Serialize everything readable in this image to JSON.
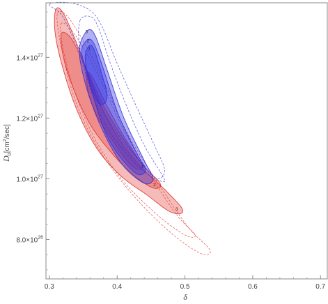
{
  "chart_data": {
    "type": "contour",
    "title": "",
    "xlabel": "δ",
    "ylabel_main": "D",
    "ylabel_sub": "0",
    "ylabel_unit_open": "[cm",
    "ylabel_unit_sup": "2",
    "ylabel_unit_close": "/sec]",
    "xlim": [
      0.295,
      0.71
    ],
    "ylim": [
      6.7e+26,
      1.58e+27
    ],
    "x_ticks": [
      {
        "value": 0.3,
        "label": "0.3"
      },
      {
        "value": 0.4,
        "label": "0.4"
      },
      {
        "value": 0.5,
        "label": "0.5"
      },
      {
        "value": 0.6,
        "label": "0.6"
      },
      {
        "value": 0.7,
        "label": "0.7"
      }
    ],
    "y_ticks": [
      {
        "value": 8e+26,
        "mantissa": "8.0",
        "exp": "26"
      },
      {
        "value": 1e+27,
        "mantissa": "1.0",
        "exp": "27"
      },
      {
        "value": 1.2e+27,
        "mantissa": "1.2",
        "exp": "27"
      },
      {
        "value": 1.4e+27,
        "mantissa": "1.4",
        "exp": "27"
      }
    ],
    "grid": false,
    "series": [
      {
        "color": "#e0302a",
        "contours": [
          {
            "level": "3",
            "style": "filled",
            "opacity": 0.33,
            "points": [
              [
                0.31,
                1.56e+27
              ],
              [
                0.322,
                1.54e+27
              ],
              [
                0.345,
                1.42e+27
              ],
              [
                0.37,
                1.27e+27
              ],
              [
                0.4,
                1.14e+27
              ],
              [
                0.435,
                1.04e+27
              ],
              [
                0.47,
                9.65e+26
              ],
              [
                0.495,
                9.05e+26
              ],
              [
                0.493,
                8.85e+26
              ],
              [
                0.475,
                8.95e+26
              ],
              [
                0.445,
                9.45e+26
              ],
              [
                0.405,
                1.01e+27
              ],
              [
                0.37,
                1.1e+27
              ],
              [
                0.34,
                1.23e+27
              ],
              [
                0.318,
                1.38e+27
              ],
              [
                0.308,
                1.49e+27
              ]
            ],
            "label_at": [
              0.488,
              9e+26
            ]
          },
          {
            "level": "2",
            "style": "filled",
            "opacity": 0.33,
            "points": [
              [
                0.318,
                1.48e+27
              ],
              [
                0.333,
                1.46e+27
              ],
              [
                0.355,
                1.36e+27
              ],
              [
                0.38,
                1.24e+27
              ],
              [
                0.41,
                1.13e+27
              ],
              [
                0.44,
                1.04e+27
              ],
              [
                0.462,
                9.9e+26
              ],
              [
                0.462,
                9.7e+26
              ],
              [
                0.448,
                9.75e+26
              ],
              [
                0.42,
                1.02e+27
              ],
              [
                0.39,
                1.09e+27
              ],
              [
                0.36,
                1.18e+27
              ],
              [
                0.335,
                1.3e+27
              ],
              [
                0.32,
                1.41e+27
              ]
            ],
            "label_at": [
              0.455,
              9.8e+26
            ]
          },
          {
            "level": "1",
            "style": "filled",
            "opacity": 0.33,
            "points": [
              [
                0.355,
                1.35e+27
              ],
              [
                0.365,
                1.33e+27
              ],
              [
                0.385,
                1.24e+27
              ],
              [
                0.41,
                1.14e+27
              ],
              [
                0.43,
                1.07e+27
              ],
              [
                0.438,
                1.04e+27
              ],
              [
                0.432,
                1.03e+27
              ],
              [
                0.418,
                1.05e+27
              ],
              [
                0.395,
                1.12e+27
              ],
              [
                0.372,
                1.2e+27
              ],
              [
                0.358,
                1.28e+27
              ]
            ],
            "label_at": [
              0.437,
              1.04e+27
            ]
          },
          {
            "level": "",
            "style": "dashed",
            "points": [
              [
                0.317,
                1.51e+27
              ],
              [
                0.336,
                1.48e+27
              ],
              [
                0.37,
                1.35e+27
              ],
              [
                0.41,
                1.16e+27
              ],
              [
                0.455,
                9.9e+26
              ],
              [
                0.49,
                8.75e+26
              ],
              [
                0.515,
                8.15e+26
              ],
              [
                0.5,
                8.15e+26
              ],
              [
                0.46,
                8.8e+26
              ],
              [
                0.41,
                9.9e+26
              ],
              [
                0.37,
                1.12e+27
              ],
              [
                0.34,
                1.27e+27
              ],
              [
                0.322,
                1.41e+27
              ]
            ]
          },
          {
            "level": "",
            "style": "dashed",
            "points": [
              [
                0.312,
                1.545e+27
              ],
              [
                0.332,
                1.52e+27
              ],
              [
                0.372,
                1.36e+27
              ],
              [
                0.415,
                1.15e+27
              ],
              [
                0.465,
                9.7e+26
              ],
              [
                0.505,
                8.4e+26
              ],
              [
                0.537,
                7.65e+26
              ],
              [
                0.522,
                7.55e+26
              ],
              [
                0.475,
                8.3e+26
              ],
              [
                0.42,
                9.55e+26
              ],
              [
                0.372,
                1.1e+27
              ],
              [
                0.338,
                1.26e+27
              ],
              [
                0.318,
                1.43e+27
              ]
            ]
          }
        ]
      },
      {
        "color": "#2f2fe0",
        "contours": [
          {
            "level": "3",
            "style": "filled",
            "opacity": 0.38,
            "points": [
              [
                0.345,
                1.44e+27
              ],
              [
                0.357,
                1.49e+27
              ],
              [
                0.368,
                1.47e+27
              ],
              [
                0.385,
                1.36e+27
              ],
              [
                0.41,
                1.2e+27
              ],
              [
                0.44,
                1.06e+27
              ],
              [
                0.453,
                1e+27
              ],
              [
                0.44,
                9.85e+26
              ],
              [
                0.41,
                1.04e+27
              ],
              [
                0.385,
                1.13e+27
              ],
              [
                0.362,
                1.25e+27
              ],
              [
                0.347,
                1.37e+27
              ]
            ],
            "label_at": [
              0.355,
              1.485e+27
            ]
          },
          {
            "level": "2",
            "style": "filled",
            "opacity": 0.38,
            "points": [
              [
                0.348,
                1.43e+27
              ],
              [
                0.358,
                1.46e+27
              ],
              [
                0.367,
                1.44e+27
              ],
              [
                0.38,
                1.36e+27
              ],
              [
                0.402,
                1.21e+27
              ],
              [
                0.43,
                1.08e+27
              ],
              [
                0.442,
                1.03e+27
              ],
              [
                0.43,
                1.015e+27
              ],
              [
                0.405,
                1.07e+27
              ],
              [
                0.383,
                1.15e+27
              ],
              [
                0.365,
                1.27e+27
              ],
              [
                0.351,
                1.38e+27
              ]
            ],
            "label_at": [
              0.357,
              1.455e+27
            ]
          },
          {
            "level": "1",
            "style": "filled",
            "opacity": 0.38,
            "points": [
              [
                0.353,
                1.41e+27
              ],
              [
                0.36,
                1.44e+27
              ],
              [
                0.367,
                1.42e+27
              ],
              [
                0.378,
                1.34e+27
              ],
              [
                0.385,
                1.28e+27
              ],
              [
                0.382,
                1.25e+27
              ],
              [
                0.372,
                1.25e+27
              ],
              [
                0.362,
                1.3e+27
              ],
              [
                0.355,
                1.36e+27
              ]
            ],
            "label_at": [
              0.359,
              1.43e+27
            ]
          },
          {
            "level": "",
            "style": "dashed",
            "points": [
              [
                0.345,
                1.52e+27
              ],
              [
                0.36,
                1.535e+27
              ],
              [
                0.372,
                1.5e+27
              ],
              [
                0.39,
                1.38e+27
              ],
              [
                0.412,
                1.25e+27
              ],
              [
                0.44,
                1.11e+27
              ],
              [
                0.467,
                1.01e+27
              ],
              [
                0.468,
                9.9e+26
              ],
              [
                0.445,
                1.015e+27
              ],
              [
                0.415,
                1.08e+27
              ],
              [
                0.385,
                1.17e+27
              ],
              [
                0.36,
                1.3e+27
              ],
              [
                0.345,
                1.43e+27
              ]
            ]
          },
          {
            "level": "",
            "style": "dashed",
            "points": [
              [
                0.3,
                1.575e+27
              ],
              [
                0.33,
                1.58e+27
              ],
              [
                0.36,
                1.555e+27
              ],
              [
                0.378,
                1.5e+27
              ],
              [
                0.4,
                1.38e+27
              ],
              [
                0.428,
                1.24e+27
              ],
              [
                0.455,
                1.11e+27
              ],
              [
                0.47,
                1.03e+27
              ],
              [
                0.46,
                1e+27
              ],
              [
                0.44,
                1.04e+27
              ],
              [
                0.41,
                1.12e+27
              ],
              [
                0.38,
                1.22e+27
              ],
              [
                0.36,
                1.33e+27
              ],
              [
                0.338,
                1.45e+27
              ],
              [
                0.318,
                1.54e+27
              ]
            ]
          }
        ]
      }
    ]
  }
}
